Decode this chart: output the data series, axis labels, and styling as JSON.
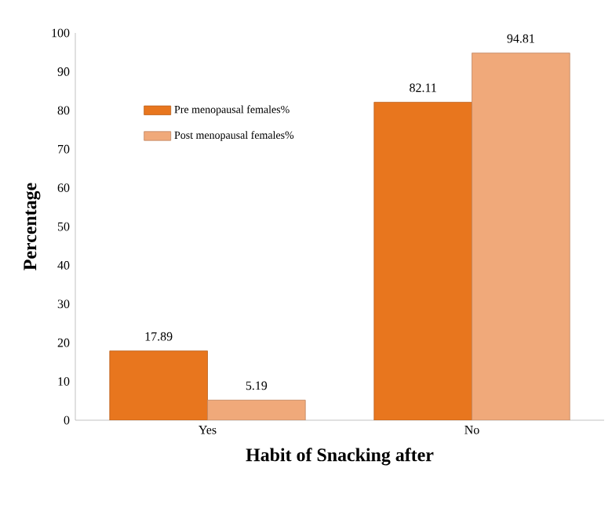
{
  "chart_data": {
    "type": "bar",
    "xlabel": "Habit of Snacking after",
    "ylabel": "Percentage",
    "categories": [
      "Yes",
      "No"
    ],
    "series": [
      {
        "name": "Pre menopausal females%",
        "color": "#e8761e",
        "values": [
          17.89,
          82.11
        ]
      },
      {
        "name": "Post menopausal females%",
        "color": "#f0a97a",
        "values": [
          5.19,
          94.81
        ]
      }
    ],
    "ylim": [
      0,
      100
    ],
    "yticks": [
      0,
      10,
      20,
      30,
      40,
      50,
      60,
      70,
      80,
      90,
      100
    ],
    "data_labels": true,
    "legend": "top left",
    "grid": false
  }
}
